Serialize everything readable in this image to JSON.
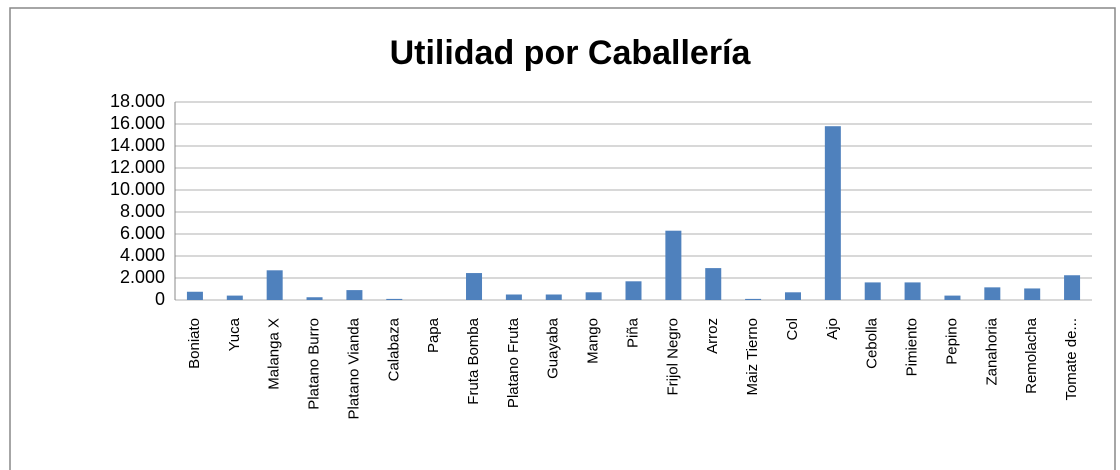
{
  "chart_data": {
    "type": "bar",
    "title": "Utilidad por Caballería",
    "categories": [
      "Boniato",
      "Yuca",
      "Malanga X",
      "Platano Burro",
      "Platano Vianda",
      "Calabaza",
      "Papa",
      "Fruta Bomba",
      "Platano Fruta",
      "Guayaba",
      "Mango",
      "Piña",
      "Frijol Negro",
      "Arroz",
      "Maiz Tierno",
      "Col",
      "Ajo",
      "Cebolla",
      "Pimiento",
      "Pepino",
      "Zanahoria",
      "Remolacha",
      "Tomate de..."
    ],
    "values": [
      750,
      400,
      2700,
      250,
      900,
      100,
      0,
      2450,
      500,
      500,
      700,
      1700,
      6300,
      2900,
      100,
      700,
      15800,
      1600,
      1600,
      400,
      1150,
      1050,
      2250
    ],
    "color": "#4f81bd",
    "ylim": [
      0,
      18000
    ],
    "yticks": [
      0,
      {
        "value": 2000,
        "label": "2.000"
      },
      {
        "value": 4000,
        "label": "4.000"
      },
      {
        "value": 6000,
        "label": "6.000"
      },
      {
        "value": 8000,
        "label": "8.000"
      },
      {
        "value": 10000,
        "label": "10.000"
      },
      {
        "value": 12000,
        "label": "12.000"
      },
      {
        "value": 14000,
        "label": "14.000"
      },
      {
        "value": 16000,
        "label": "16.000"
      },
      {
        "value": 18000,
        "label": "18.000"
      }
    ],
    "grid": true
  }
}
